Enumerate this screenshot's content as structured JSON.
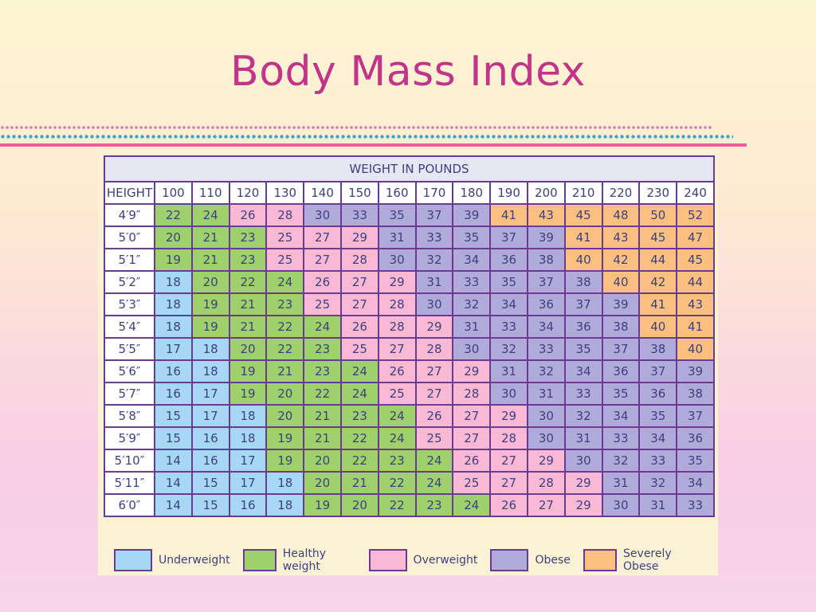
{
  "title": "Body Mass Index",
  "table": {
    "header_title": "WEIGHT IN POUNDS",
    "height_label": "HEIGHT",
    "weights": [
      "100",
      "110",
      "120",
      "130",
      "140",
      "150",
      "160",
      "170",
      "180",
      "190",
      "200",
      "210",
      "220",
      "230",
      "240"
    ],
    "rows": [
      {
        "height": "4′9″",
        "values": [
          "22",
          "24",
          "26",
          "28",
          "30",
          "33",
          "35",
          "37",
          "39",
          "41",
          "43",
          "45",
          "48",
          "50",
          "52"
        ],
        "cats": [
          "H",
          "H",
          "O",
          "O",
          "B",
          "B",
          "B",
          "B",
          "B",
          "S",
          "S",
          "S",
          "S",
          "S",
          "S"
        ]
      },
      {
        "height": "5′0″",
        "values": [
          "20",
          "21",
          "23",
          "25",
          "27",
          "29",
          "31",
          "33",
          "35",
          "37",
          "39",
          "41",
          "43",
          "45",
          "47"
        ],
        "cats": [
          "H",
          "H",
          "H",
          "O",
          "O",
          "O",
          "B",
          "B",
          "B",
          "B",
          "B",
          "S",
          "S",
          "S",
          "S"
        ]
      },
      {
        "height": "5′1″",
        "values": [
          "19",
          "21",
          "23",
          "25",
          "27",
          "28",
          "30",
          "32",
          "34",
          "36",
          "38",
          "40",
          "42",
          "44",
          "45"
        ],
        "cats": [
          "H",
          "H",
          "H",
          "O",
          "O",
          "O",
          "B",
          "B",
          "B",
          "B",
          "B",
          "S",
          "S",
          "S",
          "S"
        ]
      },
      {
        "height": "5′2″",
        "values": [
          "18",
          "20",
          "22",
          "24",
          "26",
          "27",
          "29",
          "31",
          "33",
          "35",
          "37",
          "38",
          "40",
          "42",
          "44"
        ],
        "cats": [
          "U",
          "H",
          "H",
          "H",
          "O",
          "O",
          "O",
          "B",
          "B",
          "B",
          "B",
          "B",
          "S",
          "S",
          "S"
        ]
      },
      {
        "height": "5′3″",
        "values": [
          "18",
          "19",
          "21",
          "23",
          "25",
          "27",
          "28",
          "30",
          "32",
          "34",
          "36",
          "37",
          "39",
          "41",
          "43"
        ],
        "cats": [
          "U",
          "H",
          "H",
          "H",
          "O",
          "O",
          "O",
          "B",
          "B",
          "B",
          "B",
          "B",
          "B",
          "S",
          "S"
        ]
      },
      {
        "height": "5′4″",
        "values": [
          "18",
          "19",
          "21",
          "22",
          "24",
          "26",
          "28",
          "29",
          "31",
          "33",
          "34",
          "36",
          "38",
          "40",
          "41"
        ],
        "cats": [
          "U",
          "H",
          "H",
          "H",
          "H",
          "O",
          "O",
          "O",
          "B",
          "B",
          "B",
          "B",
          "B",
          "S",
          "S"
        ]
      },
      {
        "height": "5′5″",
        "values": [
          "17",
          "18",
          "20",
          "22",
          "23",
          "25",
          "27",
          "28",
          "30",
          "32",
          "33",
          "35",
          "37",
          "38",
          "40"
        ],
        "cats": [
          "U",
          "U",
          "H",
          "H",
          "H",
          "O",
          "O",
          "O",
          "B",
          "B",
          "B",
          "B",
          "B",
          "B",
          "S"
        ]
      },
      {
        "height": "5′6″",
        "values": [
          "16",
          "18",
          "19",
          "21",
          "23",
          "24",
          "26",
          "27",
          "29",
          "31",
          "32",
          "34",
          "36",
          "37",
          "39"
        ],
        "cats": [
          "U",
          "U",
          "H",
          "H",
          "H",
          "H",
          "O",
          "O",
          "O",
          "B",
          "B",
          "B",
          "B",
          "B",
          "B"
        ]
      },
      {
        "height": "5′7″",
        "values": [
          "16",
          "17",
          "19",
          "20",
          "22",
          "24",
          "25",
          "27",
          "28",
          "30",
          "31",
          "33",
          "35",
          "36",
          "38"
        ],
        "cats": [
          "U",
          "U",
          "H",
          "H",
          "H",
          "H",
          "O",
          "O",
          "O",
          "B",
          "B",
          "B",
          "B",
          "B",
          "B"
        ]
      },
      {
        "height": "5′8″",
        "values": [
          "15",
          "17",
          "18",
          "20",
          "21",
          "23",
          "24",
          "26",
          "27",
          "29",
          "30",
          "32",
          "34",
          "35",
          "37"
        ],
        "cats": [
          "U",
          "U",
          "U",
          "H",
          "H",
          "H",
          "H",
          "O",
          "O",
          "O",
          "B",
          "B",
          "B",
          "B",
          "B"
        ]
      },
      {
        "height": "5′9″",
        "values": [
          "15",
          "16",
          "18",
          "19",
          "21",
          "22",
          "24",
          "25",
          "27",
          "28",
          "30",
          "31",
          "33",
          "34",
          "36"
        ],
        "cats": [
          "U",
          "U",
          "U",
          "H",
          "H",
          "H",
          "H",
          "O",
          "O",
          "O",
          "B",
          "B",
          "B",
          "B",
          "B"
        ]
      },
      {
        "height": "5′10″",
        "values": [
          "14",
          "16",
          "17",
          "19",
          "20",
          "22",
          "23",
          "24",
          "26",
          "27",
          "29",
          "30",
          "32",
          "33",
          "35"
        ],
        "cats": [
          "U",
          "U",
          "U",
          "H",
          "H",
          "H",
          "H",
          "H",
          "O",
          "O",
          "O",
          "B",
          "B",
          "B",
          "B"
        ]
      },
      {
        "height": "5′11″",
        "values": [
          "14",
          "15",
          "17",
          "18",
          "20",
          "21",
          "22",
          "24",
          "25",
          "27",
          "28",
          "29",
          "31",
          "32",
          "34"
        ],
        "cats": [
          "U",
          "U",
          "U",
          "U",
          "H",
          "H",
          "H",
          "H",
          "O",
          "O",
          "O",
          "O",
          "B",
          "B",
          "B"
        ]
      },
      {
        "height": "6′0″",
        "values": [
          "14",
          "15",
          "16",
          "18",
          "19",
          "20",
          "22",
          "23",
          "24",
          "26",
          "27",
          "29",
          "30",
          "31",
          "33"
        ],
        "cats": [
          "U",
          "U",
          "U",
          "U",
          "H",
          "H",
          "H",
          "H",
          "H",
          "O",
          "O",
          "O",
          "B",
          "B",
          "B"
        ]
      }
    ]
  },
  "category_colors": {
    "U": "#a6d8f4",
    "H": "#9ed06c",
    "O": "#f9b8d4",
    "B": "#b1abd9",
    "S": "#fbc07f"
  },
  "legend": [
    {
      "key": "U",
      "label": "Underweight"
    },
    {
      "key": "H",
      "label": "Healthy weight"
    },
    {
      "key": "O",
      "label": "Overweight"
    },
    {
      "key": "B",
      "label": "Obese"
    },
    {
      "key": "S",
      "label": "Severely Obese"
    }
  ]
}
